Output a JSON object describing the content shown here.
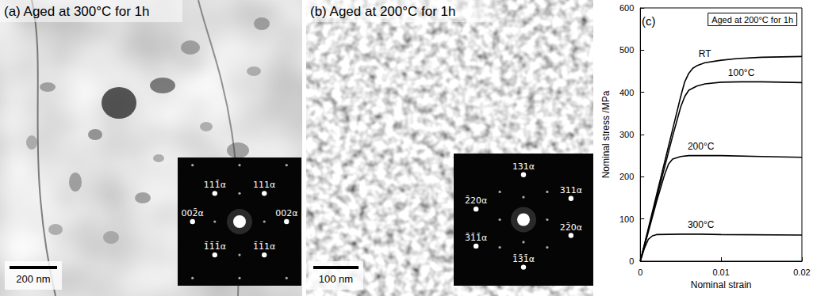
{
  "panels": [
    {
      "title": "(a) Aged at 300°C for 1h",
      "scale_bar": "200 nm",
      "diffraction_spots": [
        "111̄α",
        "111α",
        "002̄α",
        "002α",
        "1̄1̄1̄α",
        "1̄1̄1α"
      ]
    },
    {
      "title": "(b) Aged at 200°C for 1h",
      "scale_bar": "100 nm",
      "diffraction_spots": [
        "131α",
        "311α",
        "2̄20α",
        "22̄0α",
        "3̄1̄1̄α",
        "1̄3̄1̄α"
      ]
    }
  ],
  "chart_data": {
    "type": "line",
    "title": "Aged at 200°C for 1h",
    "annotations": [
      "(c)"
    ],
    "x_label": "Nominal strain",
    "y_label": "Nominal stress /MPa",
    "xlim": [
      0,
      0.02
    ],
    "xticks": [
      0,
      0.01,
      0.02
    ],
    "ylim": [
      0,
      600
    ],
    "yticks": [
      0,
      100,
      200,
      300,
      400,
      500,
      600
    ],
    "grid": false,
    "marker": "none",
    "line_style": "solid",
    "series": [
      {
        "name": "RT",
        "color": "#000000",
        "x": [
          0,
          0.001,
          0.002,
          0.003,
          0.004,
          0.005,
          0.0055,
          0.006,
          0.0065,
          0.007,
          0.008,
          0.01,
          0.012,
          0.015,
          0.02
        ],
        "values": [
          0,
          78,
          156,
          234,
          312,
          390,
          425,
          445,
          457,
          463,
          470,
          476,
          480,
          483,
          485
        ]
      },
      {
        "name": "100°C",
        "color": "#000000",
        "x": [
          0,
          0.001,
          0.002,
          0.003,
          0.004,
          0.005,
          0.0055,
          0.006,
          0.007,
          0.008,
          0.01,
          0.0125,
          0.015,
          0.02
        ],
        "values": [
          0,
          74,
          148,
          222,
          296,
          365,
          390,
          405,
          415,
          420,
          424,
          425,
          425,
          423
        ]
      },
      {
        "name": "200°C",
        "color": "#000000",
        "x": [
          0,
          0.001,
          0.002,
          0.003,
          0.0035,
          0.004,
          0.005,
          0.006,
          0.0075,
          0.01,
          0.015,
          0.02
        ],
        "values": [
          0,
          70,
          140,
          205,
          230,
          242,
          248,
          250,
          250,
          250,
          248,
          246
        ]
      },
      {
        "name": "300°C",
        "color": "#000000",
        "x": [
          0,
          0.0005,
          0.001,
          0.0015,
          0.002,
          0.005,
          0.0075,
          0.01,
          0.02
        ],
        "values": [
          0,
          30,
          52,
          60,
          63,
          64,
          64,
          63,
          62
        ]
      }
    ]
  }
}
